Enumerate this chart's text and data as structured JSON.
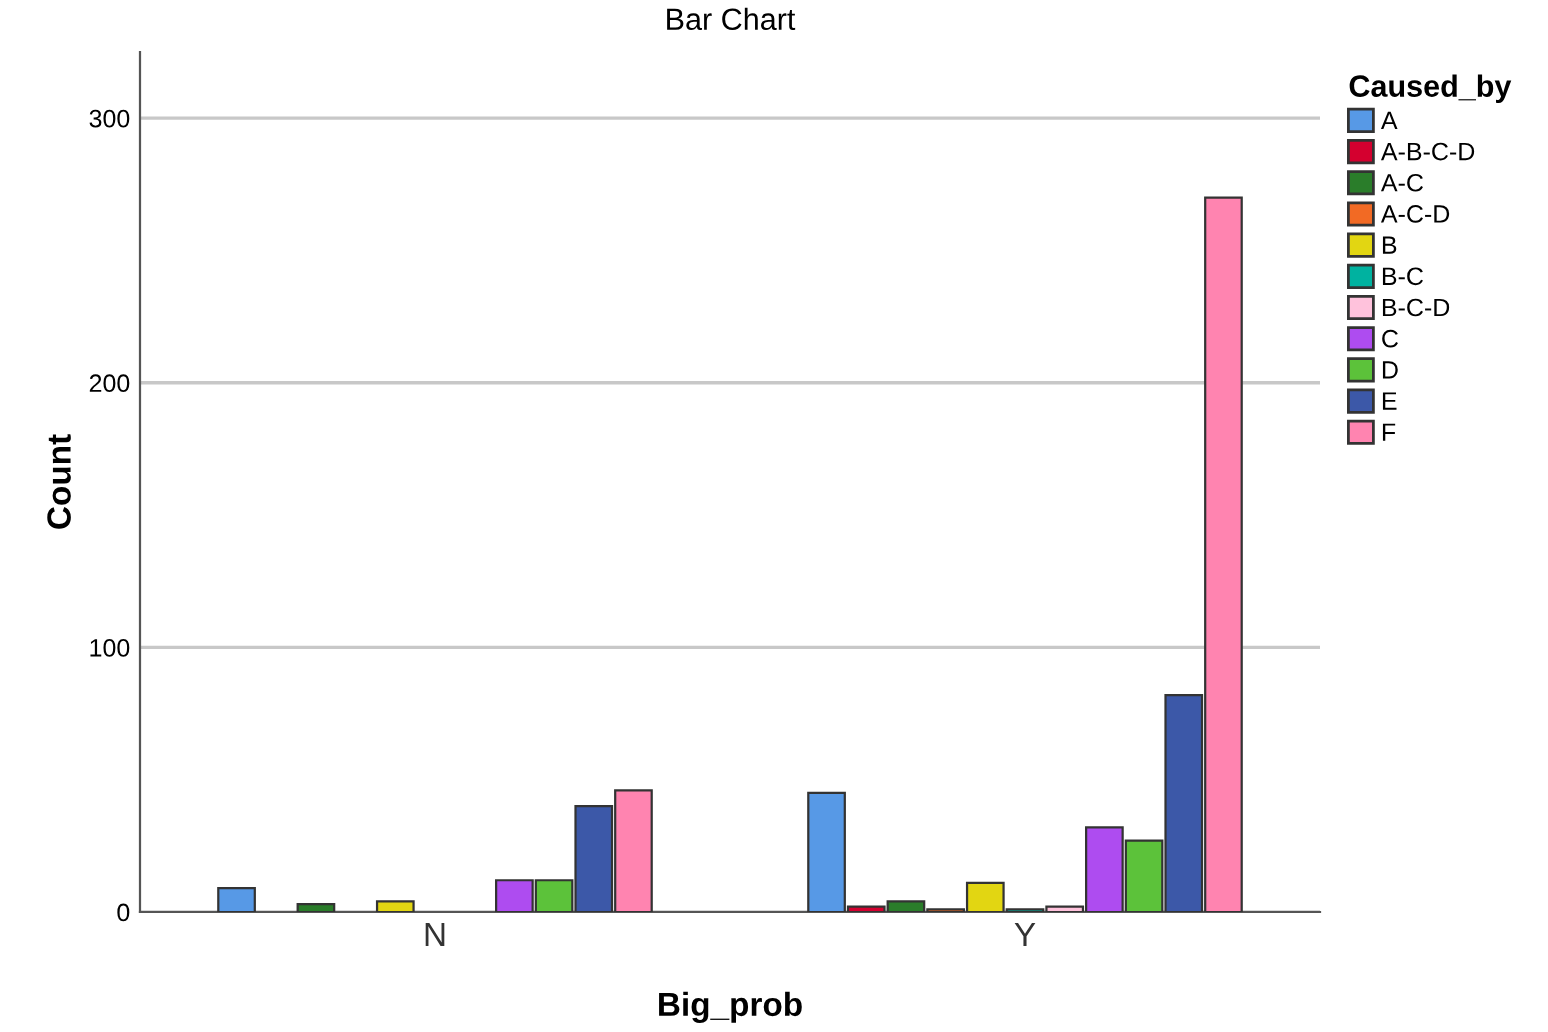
{
  "chart_data": {
    "type": "bar",
    "title": "Bar Chart",
    "xlabel": "Big_prob",
    "ylabel": "Count",
    "legend_title": "Caused_by",
    "categories": [
      "N",
      "Y"
    ],
    "series": [
      {
        "name": "A",
        "color": "#5799e6",
        "values": [
          9,
          45
        ]
      },
      {
        "name": "A-B-C-D",
        "color": "#d4002f",
        "values": [
          null,
          2
        ]
      },
      {
        "name": "A-C",
        "color": "#2a7d2a",
        "values": [
          3,
          4
        ]
      },
      {
        "name": "A-C-D",
        "color": "#f26a24",
        "values": [
          null,
          1
        ]
      },
      {
        "name": "B",
        "color": "#e2d612",
        "values": [
          4,
          11
        ]
      },
      {
        "name": "B-C",
        "color": "#00b2a0",
        "values": [
          null,
          1
        ]
      },
      {
        "name": "B-C-D",
        "color": "#ffc2dc",
        "values": [
          null,
          2
        ]
      },
      {
        "name": "C",
        "color": "#ae4cf0",
        "values": [
          12,
          32
        ]
      },
      {
        "name": "D",
        "color": "#5cc23a",
        "values": [
          12,
          27
        ]
      },
      {
        "name": "E",
        "color": "#3c58a8",
        "values": [
          40,
          82
        ]
      },
      {
        "name": "F",
        "color": "#ff84b0",
        "values": [
          46,
          270
        ]
      }
    ],
    "ylim": [
      0,
      325
    ],
    "yticks": [
      0,
      100,
      200,
      300
    ],
    "grid": "y",
    "legend": "right"
  }
}
